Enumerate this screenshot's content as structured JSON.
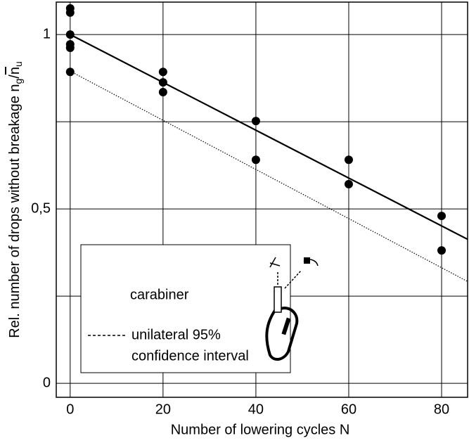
{
  "chart_data": {
    "type": "scatter",
    "xlabel": "Number of lowering cycles N",
    "ylabel": "Rel. number of drops without breakage",
    "ylabel_num": "n",
    "ylabel_num_sub": "g",
    "ylabel_den": "n",
    "ylabel_den_sub": "u",
    "xlim": [
      -3,
      85.6
    ],
    "ylim": [
      -0.04,
      1.093
    ],
    "xticks": [
      0,
      20,
      40,
      60,
      80
    ],
    "yticks": [
      0,
      {
        "value": 0.5,
        "label": "0,5"
      },
      1
    ],
    "yminor_grid": [
      0.25,
      0.75
    ],
    "grid": true,
    "color": "#000000",
    "legend_title": "carabiner",
    "points": {
      "x": [
        0,
        0,
        0,
        0,
        0,
        0,
        20,
        20,
        20,
        40,
        40,
        60,
        60,
        80,
        80
      ],
      "values": [
        1.075,
        1.063,
        1.0,
        0.972,
        0.962,
        0.893,
        0.893,
        0.863,
        0.835,
        0.752,
        0.641,
        0.641,
        0.571,
        0.48,
        0.381
      ]
    },
    "fit_line": {
      "x": [
        0,
        85.6
      ],
      "values": [
        1.0,
        0.413
      ],
      "style": "solid"
    },
    "confidence_line": {
      "name_lines": [
        "unilateral 95%",
        "confidence interval"
      ],
      "x": [
        0,
        85.6
      ],
      "values": [
        0.895,
        0.292
      ],
      "style": "dotted"
    }
  }
}
